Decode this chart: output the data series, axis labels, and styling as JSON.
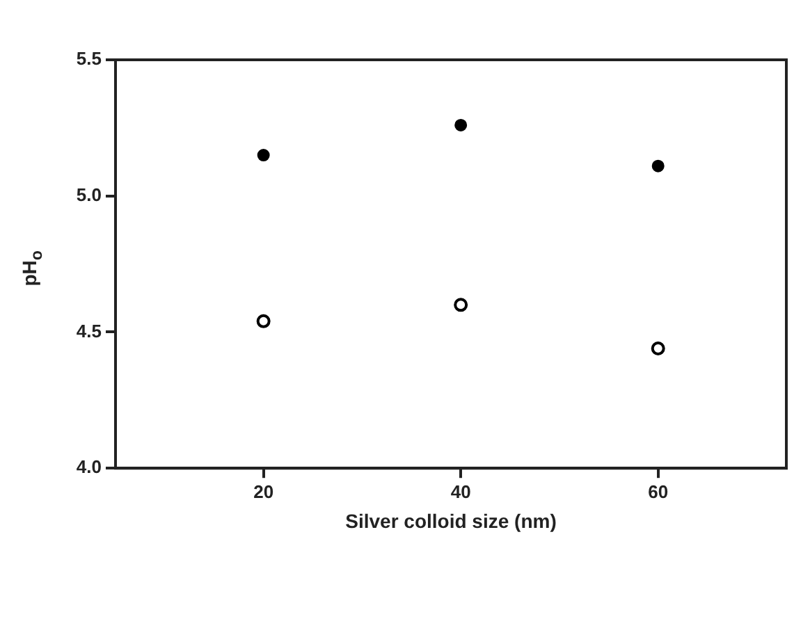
{
  "chart_data": {
    "type": "scatter",
    "xlabel": "Silver colloid size (nm)",
    "ylabel": "pH$_{o}$",
    "x": [
      20,
      40,
      60
    ],
    "series": [
      {
        "color": "#000000",
        "values": [
          5.15,
          5.26,
          5.11
        ]
      },
      {
        "color": "#000000",
        "values": [
          4.54,
          4.6,
          4.44
        ]
      }
    ],
    "xlim": [
      5,
      73
    ],
    "xticks": [
      20,
      40,
      60
    ],
    "ylim": [
      4,
      5.5
    ],
    "yticks": [
      {
        "value": 4,
        "label": "4.0"
      },
      {
        "value": 4.5,
        "label": "4.5"
      },
      {
        "value": 5,
        "label": "5.0"
      },
      5.5
    ],
    "marker": "circle",
    "grid": false,
    "legend": false
  }
}
